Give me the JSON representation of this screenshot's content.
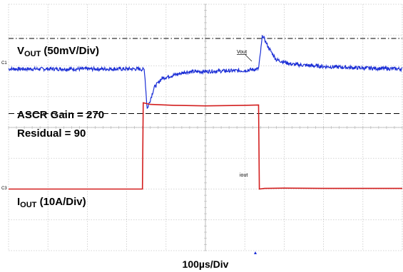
{
  "chart_data": {
    "type": "line",
    "title": "",
    "xlabel": "100µs/Div",
    "ylabel": "",
    "x_unit": "div",
    "xlim": [
      0,
      10
    ],
    "y_unit": "div",
    "ylim": [
      -4,
      4
    ],
    "grid": true,
    "grid_divisions": {
      "x": 10,
      "y": 8
    },
    "labels": {
      "vout_main": "V",
      "vout_sub": "OUT",
      "vout_suffix": " (50mV/Div)",
      "ascr": "ASCR Gain = 270",
      "residual": "Residual = 90",
      "iout_main": "I",
      "iout_sub": "OUT",
      "iout_suffix": " (10A/Div)",
      "vout_marker": "Vout",
      "iout_marker": "iout",
      "ch1_marker": "C1",
      "ch3_marker": "C3"
    },
    "series": [
      {
        "name": "Vout",
        "color": "#1c2fd6",
        "points": [
          [
            0,
            1.9
          ],
          [
            3.3,
            1.9
          ],
          [
            3.45,
            1.88
          ],
          [
            3.52,
            0.6
          ],
          [
            3.6,
            0.9
          ],
          [
            3.7,
            1.3
          ],
          [
            3.9,
            1.6
          ],
          [
            4.5,
            1.8
          ],
          [
            5.0,
            1.82
          ],
          [
            6.0,
            1.85
          ],
          [
            6.35,
            1.9
          ],
          [
            6.45,
            3.0
          ],
          [
            6.6,
            2.6
          ],
          [
            6.8,
            2.2
          ],
          [
            7.2,
            2.05
          ],
          [
            8.0,
            1.98
          ],
          [
            9.0,
            1.93
          ],
          [
            10,
            1.9
          ]
        ]
      },
      {
        "name": "Iout",
        "color": "#d31f1f",
        "points": [
          [
            0,
            -2.0
          ],
          [
            3.4,
            -2.0
          ],
          [
            3.42,
            0.8
          ],
          [
            3.6,
            0.75
          ],
          [
            4.2,
            0.72
          ],
          [
            5.0,
            0.7
          ],
          [
            6.0,
            0.72
          ],
          [
            6.35,
            0.73
          ],
          [
            6.37,
            -2.0
          ],
          [
            6.5,
            -1.98
          ],
          [
            7.0,
            -1.97
          ],
          [
            8.0,
            -1.98
          ],
          [
            10,
            -1.98
          ]
        ]
      }
    ],
    "reference_lines": [
      {
        "style": "dash-dot",
        "y": 2.89
      },
      {
        "style": "dash",
        "y": 0.45
      }
    ]
  }
}
